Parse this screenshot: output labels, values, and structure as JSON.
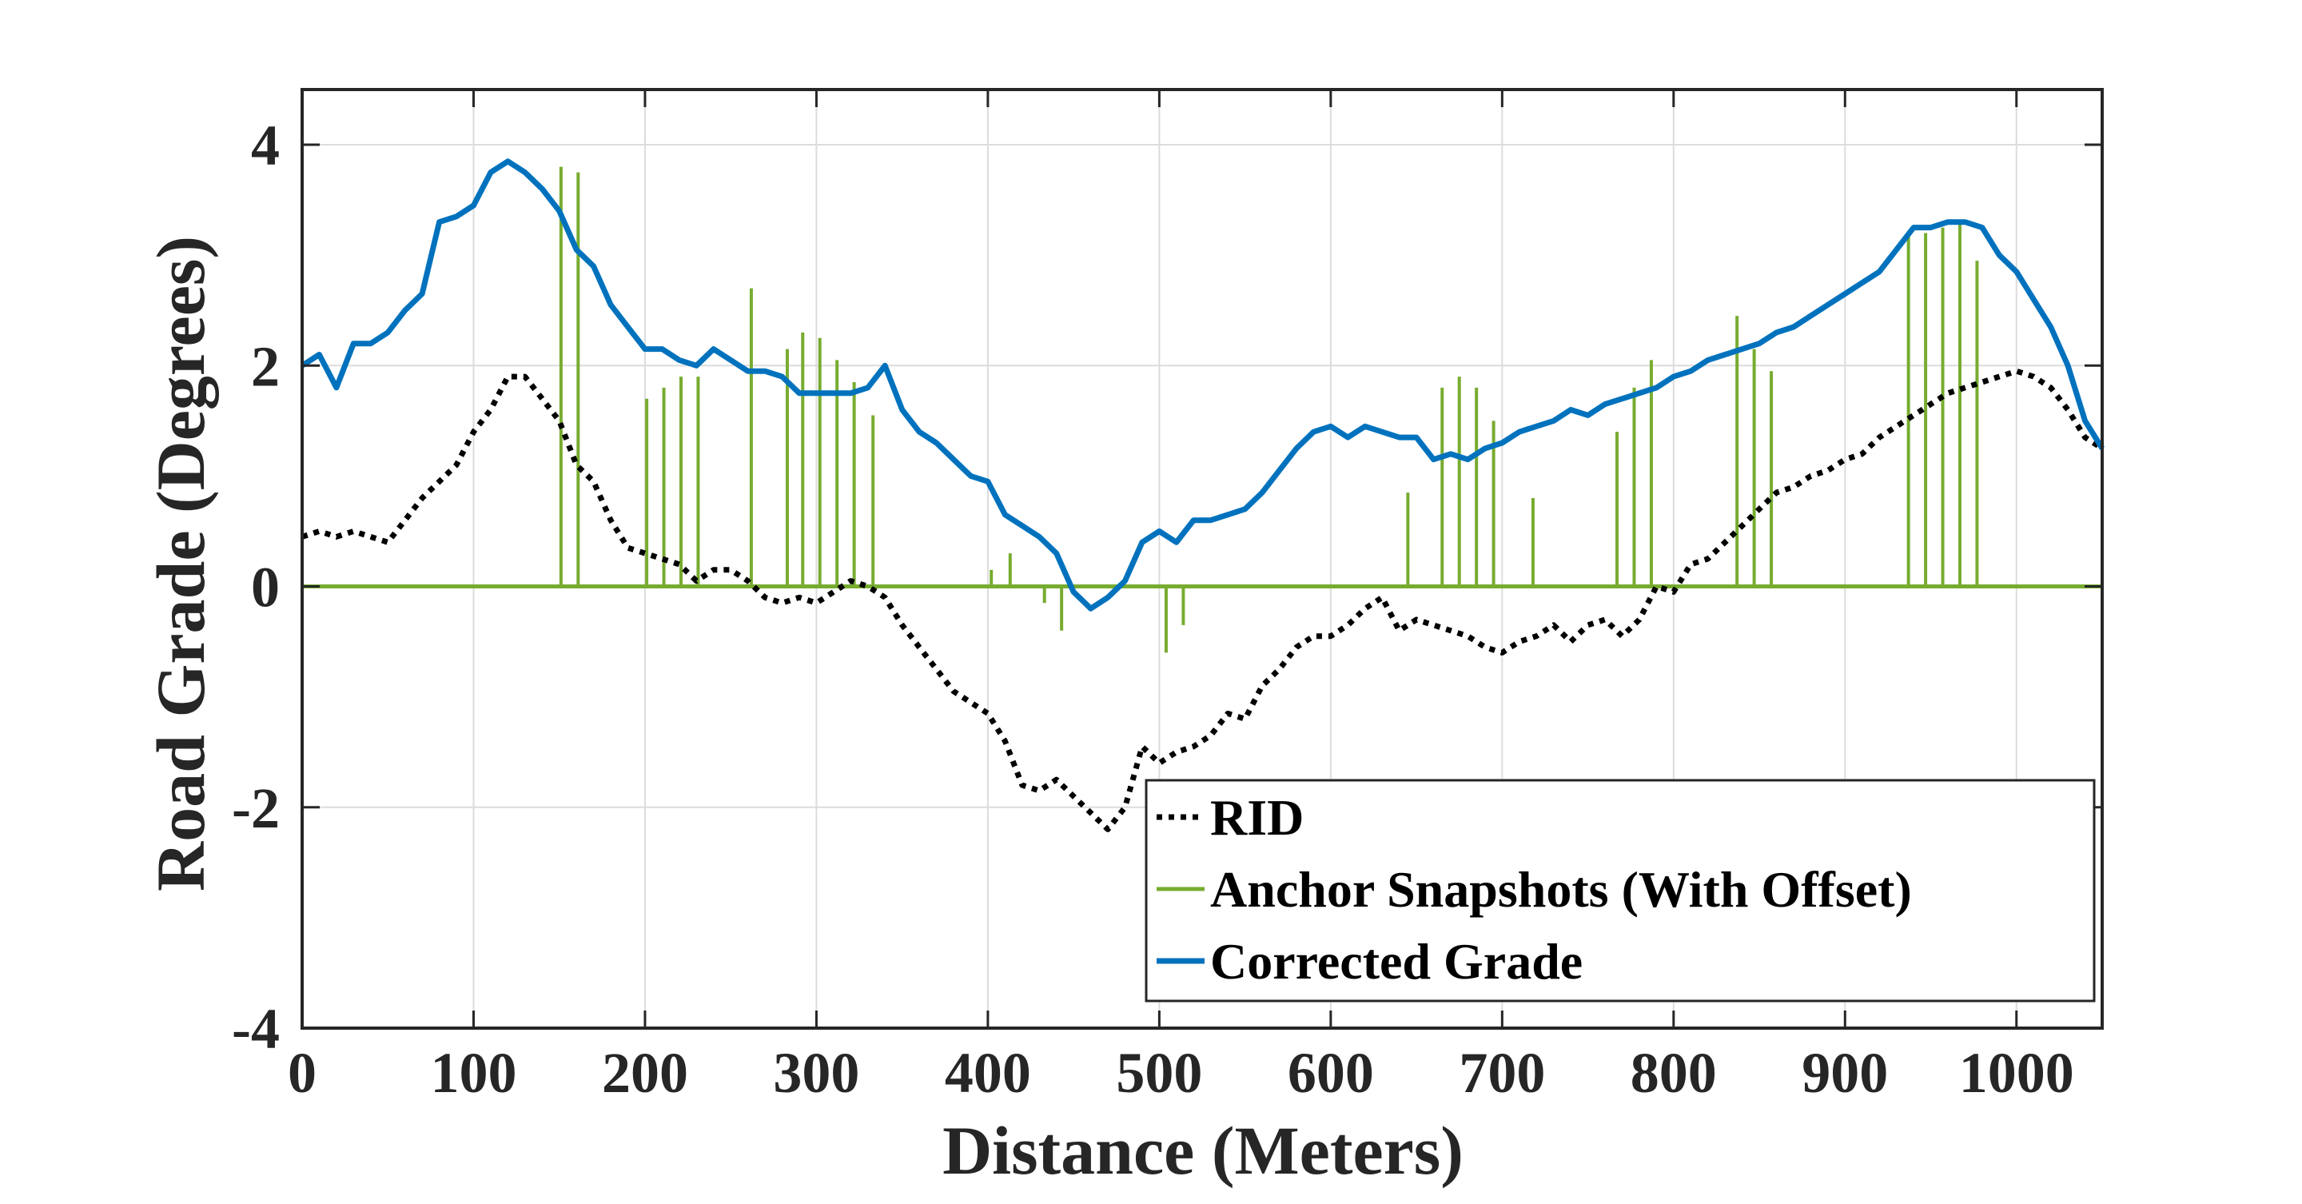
{
  "chart_data": {
    "type": "line",
    "title": "",
    "xlabel": "Distance (Meters)",
    "ylabel": "Road Grade (Degrees)",
    "xlim": [
      0,
      1050
    ],
    "ylim": [
      -4,
      4.5
    ],
    "xticks": [
      0,
      100,
      200,
      300,
      400,
      500,
      600,
      700,
      800,
      900,
      1000
    ],
    "xtick_labels": [
      "0",
      "100",
      "200",
      "300",
      "400",
      "500",
      "600",
      "700",
      "800",
      "900",
      "1000"
    ],
    "yticks": [
      -4,
      -2,
      0,
      2,
      4
    ],
    "ytick_labels": [
      "-4",
      "-2",
      "0",
      "2",
      "4"
    ],
    "grid": true,
    "legend_position": "bottom-right",
    "colors": {
      "rid": "#000000",
      "anchor": "#77AC30",
      "corrected": "#0072BD",
      "axis": "#262626",
      "grid": "#dcdcdc"
    },
    "series": [
      {
        "name": "RID",
        "style": "dotted",
        "color": "#000000",
        "x": [
          0,
          10,
          20,
          30,
          40,
          50,
          60,
          70,
          80,
          90,
          100,
          110,
          120,
          130,
          140,
          150,
          160,
          170,
          180,
          190,
          200,
          210,
          220,
          230,
          240,
          250,
          260,
          270,
          280,
          290,
          300,
          310,
          320,
          330,
          340,
          350,
          360,
          370,
          380,
          390,
          400,
          410,
          420,
          430,
          440,
          450,
          460,
          470,
          480,
          490,
          500,
          510,
          520,
          530,
          540,
          550,
          560,
          570,
          580,
          590,
          600,
          610,
          620,
          630,
          640,
          650,
          660,
          670,
          680,
          690,
          700,
          710,
          720,
          730,
          740,
          750,
          760,
          770,
          780,
          790,
          800,
          810,
          820,
          830,
          840,
          850,
          860,
          870,
          880,
          890,
          900,
          910,
          920,
          930,
          940,
          950,
          960,
          970,
          980,
          990,
          1000,
          1010,
          1020,
          1030,
          1040,
          1050
        ],
        "y": [
          0.45,
          0.5,
          0.45,
          0.5,
          0.45,
          0.4,
          0.6,
          0.8,
          0.95,
          1.1,
          1.4,
          1.6,
          1.9,
          1.9,
          1.7,
          1.5,
          1.1,
          0.95,
          0.6,
          0.35,
          0.3,
          0.25,
          0.2,
          0.05,
          0.15,
          0.15,
          0.05,
          -0.1,
          -0.15,
          -0.1,
          -0.15,
          -0.05,
          0.05,
          0.0,
          -0.1,
          -0.35,
          -0.55,
          -0.75,
          -0.95,
          -1.05,
          -1.15,
          -1.4,
          -1.8,
          -1.85,
          -1.75,
          -1.9,
          -2.05,
          -2.2,
          -2.0,
          -1.45,
          -1.6,
          -1.5,
          -1.45,
          -1.35,
          -1.15,
          -1.2,
          -0.9,
          -0.75,
          -0.55,
          -0.45,
          -0.45,
          -0.35,
          -0.2,
          -0.1,
          -0.4,
          -0.3,
          -0.35,
          -0.4,
          -0.45,
          -0.55,
          -0.6,
          -0.5,
          -0.45,
          -0.35,
          -0.5,
          -0.35,
          -0.3,
          -0.45,
          -0.3,
          0.0,
          -0.05,
          0.2,
          0.25,
          0.4,
          0.55,
          0.7,
          0.85,
          0.9,
          1.0,
          1.05,
          1.15,
          1.2,
          1.35,
          1.45,
          1.55,
          1.65,
          1.75,
          1.8,
          1.85,
          1.9,
          1.95,
          1.9,
          1.8,
          1.6,
          1.35,
          1.25
        ]
      },
      {
        "name": "Anchor Snapshots (With Offset)",
        "style": "stem",
        "color": "#77AC30",
        "x": [
          151,
          161,
          201,
          211,
          221,
          231,
          262,
          283,
          292,
          302,
          312,
          322,
          333,
          402,
          413,
          433,
          443,
          504,
          514,
          645,
          665,
          675,
          685,
          695,
          718,
          767,
          777,
          787,
          837,
          847,
          857,
          937,
          947,
          957,
          967,
          977
        ],
        "y": [
          3.8,
          3.75,
          1.7,
          1.8,
          1.9,
          1.9,
          2.7,
          2.15,
          2.3,
          2.25,
          2.05,
          1.85,
          1.55,
          0.15,
          0.3,
          -0.15,
          -0.4,
          -0.6,
          -0.35,
          0.85,
          1.8,
          1.9,
          1.8,
          1.5,
          0.8,
          1.4,
          1.8,
          2.05,
          2.45,
          2.15,
          1.95,
          3.2,
          3.2,
          3.25,
          3.3,
          2.95
        ]
      },
      {
        "name": "Corrected Grade",
        "style": "solid",
        "color": "#0072BD",
        "x": [
          0,
          10,
          20,
          30,
          40,
          50,
          60,
          70,
          80,
          90,
          100,
          110,
          120,
          130,
          140,
          150,
          160,
          170,
          180,
          190,
          200,
          210,
          220,
          230,
          240,
          250,
          260,
          270,
          280,
          290,
          300,
          310,
          320,
          330,
          340,
          350,
          360,
          370,
          380,
          390,
          400,
          410,
          420,
          430,
          440,
          450,
          460,
          470,
          480,
          490,
          500,
          510,
          520,
          530,
          540,
          550,
          560,
          570,
          580,
          590,
          600,
          610,
          620,
          630,
          640,
          650,
          660,
          670,
          680,
          690,
          700,
          710,
          720,
          730,
          740,
          750,
          760,
          770,
          780,
          790,
          800,
          810,
          820,
          830,
          840,
          850,
          860,
          870,
          880,
          890,
          900,
          910,
          920,
          930,
          940,
          950,
          960,
          970,
          980,
          990,
          1000,
          1010,
          1020,
          1030,
          1040,
          1050
        ],
        "y": [
          2.0,
          2.1,
          1.8,
          2.2,
          2.2,
          2.3,
          2.5,
          2.65,
          3.3,
          3.35,
          3.45,
          3.75,
          3.85,
          3.75,
          3.6,
          3.4,
          3.05,
          2.9,
          2.55,
          2.35,
          2.15,
          2.15,
          2.05,
          2.0,
          2.15,
          2.05,
          1.95,
          1.95,
          1.9,
          1.75,
          1.75,
          1.75,
          1.75,
          1.8,
          2.0,
          1.6,
          1.4,
          1.3,
          1.15,
          1.0,
          0.95,
          0.65,
          0.55,
          0.45,
          0.3,
          -0.05,
          -0.2,
          -0.1,
          0.05,
          0.4,
          0.5,
          0.4,
          0.6,
          0.6,
          0.65,
          0.7,
          0.85,
          1.05,
          1.25,
          1.4,
          1.45,
          1.35,
          1.45,
          1.4,
          1.35,
          1.35,
          1.15,
          1.2,
          1.15,
          1.25,
          1.3,
          1.4,
          1.45,
          1.5,
          1.6,
          1.55,
          1.65,
          1.7,
          1.75,
          1.8,
          1.9,
          1.95,
          2.05,
          2.1,
          2.15,
          2.2,
          2.3,
          2.35,
          2.45,
          2.55,
          2.65,
          2.75,
          2.85,
          3.05,
          3.25,
          3.25,
          3.3,
          3.3,
          3.25,
          3.0,
          2.85,
          2.6,
          2.35,
          2.0,
          1.5,
          1.25
        ]
      }
    ]
  }
}
